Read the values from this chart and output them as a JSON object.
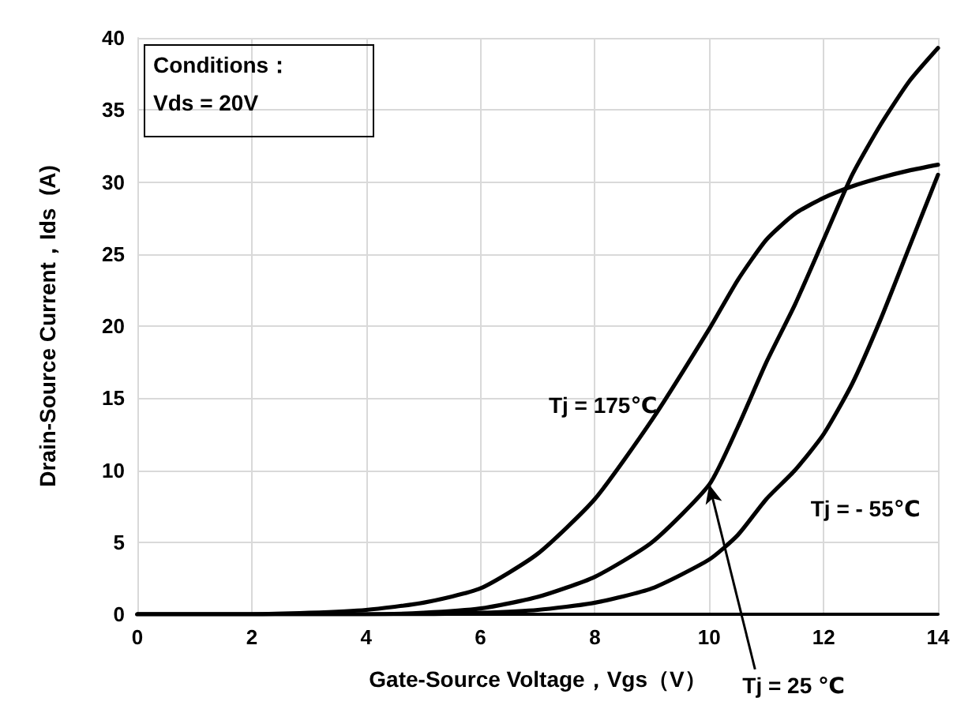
{
  "chart_data": {
    "type": "line",
    "xlabel": "Gate-Source Voltage，Vgs（V）",
    "ylabel": "Drain-Source Current，Ids  (A)",
    "xlim": [
      0,
      14
    ],
    "xticks": [
      0,
      2,
      4,
      6,
      8,
      10,
      12,
      14
    ],
    "ylim": [
      0,
      40
    ],
    "yticks": [
      0,
      5,
      10,
      15,
      20,
      25,
      30,
      35,
      40
    ],
    "grid": true,
    "marker": "none",
    "line_style": "solid",
    "series": [
      {
        "color": "#000000",
        "x": [
          0,
          2,
          3,
          4,
          5,
          6,
          7,
          8,
          9,
          10,
          10.5,
          11,
          11.5,
          12,
          12.5,
          13,
          13.5,
          14
        ],
        "values": [
          0,
          0,
          0.1,
          0.3,
          0.8,
          1.8,
          4.2,
          8,
          13.5,
          19.8,
          23.2,
          26,
          27.8,
          28.9,
          29.7,
          30.3,
          30.8,
          31.2
        ]
      },
      {
        "color": "#000000",
        "x": [
          0,
          4,
          5,
          6,
          7,
          8,
          9,
          10,
          10.5,
          11,
          11.5,
          12,
          12.5,
          13,
          13.5,
          14
        ],
        "values": [
          0,
          0,
          0.1,
          0.4,
          1.2,
          2.6,
          5,
          9,
          13,
          17.5,
          21.5,
          26,
          30.5,
          34,
          37,
          39.3
        ]
      },
      {
        "color": "#000000",
        "x": [
          0,
          5,
          6,
          7,
          8,
          9,
          10,
          10.5,
          11,
          11.5,
          12,
          12.5,
          13,
          13.5,
          14
        ],
        "values": [
          0,
          0,
          0.1,
          0.3,
          0.8,
          1.8,
          3.8,
          5.5,
          8,
          10,
          12.5,
          16,
          20.5,
          25.5,
          30.5
        ]
      }
    ],
    "annotations": [
      "Conditions：",
      "Vds = 20V",
      {
        "text": "Tj = 175℃",
        "x": 9.2,
        "y": 14.5
      },
      {
        "text": "Tj = - 55℃",
        "x": 11,
        "y": 8
      },
      {
        "text": "Tj = 25 ℃",
        "x": 10,
        "y": 9
      }
    ]
  }
}
